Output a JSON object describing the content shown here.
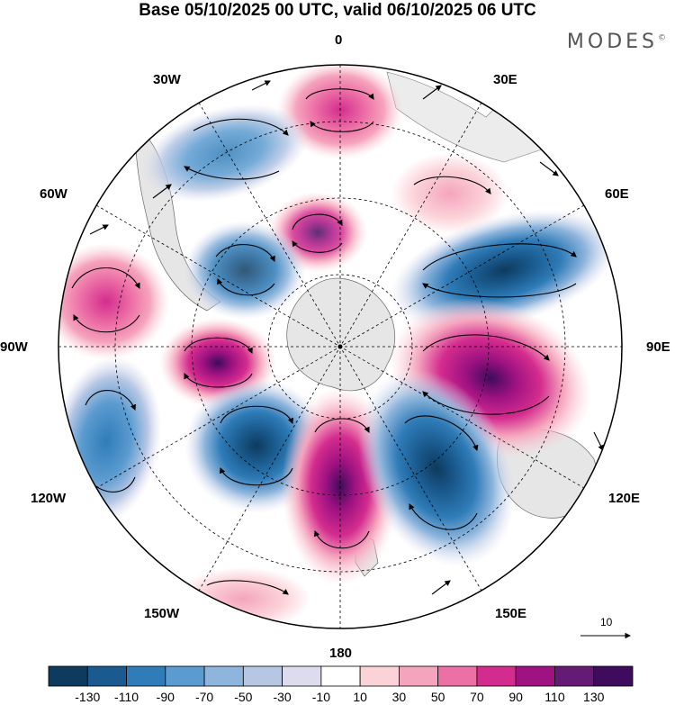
{
  "title": "Base 05/10/2025 00 UTC, valid 06/10/2025 06 UTC",
  "brand": {
    "name": "MODES",
    "mark": "©"
  },
  "map": {
    "projection": "south-polar-stereographic",
    "longitude_labels": {
      "top": "0",
      "top_right": "30E",
      "right_upper": "60E",
      "right": "90E",
      "right_lower": "120E",
      "bottom_right": "150E",
      "bottom": "180",
      "bottom_left": "150W",
      "left_lower": "120W",
      "left": "90W",
      "left_upper": "60W",
      "top_left": "30W"
    },
    "vector_reference": {
      "label": "10"
    }
  },
  "colorbar": {
    "labels": [
      "-130",
      "-110",
      "-90",
      "-70",
      "-50",
      "-30",
      "-10",
      "10",
      "30",
      "50",
      "70",
      "90",
      "110",
      "130"
    ],
    "colors": [
      "#0e3a5e",
      "#1a5a8e",
      "#2f7cb8",
      "#5b9bd0",
      "#8eb5dc",
      "#b6c7e4",
      "#dcdcee",
      "#ffffff",
      "#fbd2d8",
      "#f5a4bd",
      "#ec6fa6",
      "#d42c8e",
      "#9e1281",
      "#651a75",
      "#3f0b5c"
    ]
  },
  "anomaly_centers": [
    {
      "sign": "positive",
      "value": 30,
      "name": "center-0"
    },
    {
      "sign": "positive",
      "value": 70,
      "name": "center-30w-high"
    },
    {
      "sign": "negative",
      "value": -50,
      "name": "center-30w-low"
    },
    {
      "sign": "positive",
      "value": 10,
      "name": "center-45e"
    },
    {
      "sign": "negative",
      "value": -90,
      "name": "center-60e"
    },
    {
      "sign": "negative",
      "value": -70,
      "name": "center-60w"
    },
    {
      "sign": "positive",
      "value": 70,
      "name": "center-75w"
    },
    {
      "sign": "positive",
      "value": 130,
      "name": "center-90w"
    },
    {
      "sign": "positive",
      "value": 110,
      "name": "center-90e"
    },
    {
      "sign": "negative",
      "value": -50,
      "name": "center-110w"
    },
    {
      "sign": "negative",
      "value": -130,
      "name": "center-140w"
    },
    {
      "sign": "positive",
      "value": 130,
      "name": "center-175e"
    },
    {
      "sign": "negative",
      "value": -130,
      "name": "center-150e"
    },
    {
      "sign": "positive",
      "value": 30,
      "name": "center-150w"
    }
  ]
}
